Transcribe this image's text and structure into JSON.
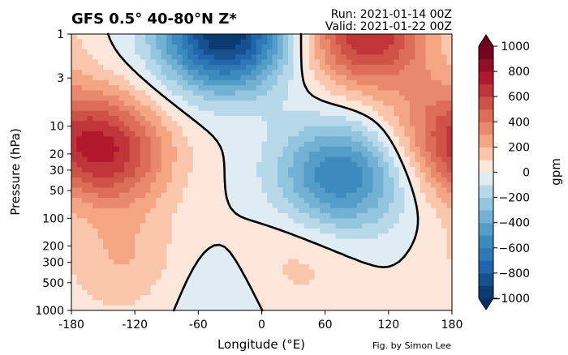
{
  "title": "GFS 0.5° 40-80°N Z*",
  "run_label": "Run: 2021-01-14 00Z",
  "valid_label": "Valid: 2021-01-22 00Z",
  "credit": "Fig. by Simon Lee",
  "colors": {
    "strong_positive": "#67001f",
    "positive": "#d6604d",
    "neutral": "#f7f7f7",
    "negative": "#4393c3",
    "strong_negative": "#053061",
    "zero_contour": "#000000"
  },
  "chart_data": {
    "type": "heatmap",
    "xlabel": "Longitude (°E)",
    "ylabel": "Pressure (hPa)",
    "xlim": [
      -180,
      180
    ],
    "ylim": [
      1000,
      1
    ],
    "y_scale": "log",
    "x_ticks": [
      "-180",
      "-120",
      "-60",
      "0",
      "60",
      "120",
      "180"
    ],
    "x_tick_values": [
      -180,
      -120,
      -60,
      0,
      60,
      120,
      180
    ],
    "y_ticks": [
      "1",
      "3",
      "10",
      "20",
      "30",
      "50",
      "100",
      "200",
      "300",
      "500",
      "1000"
    ],
    "y_tick_values": [
      1,
      3,
      10,
      20,
      30,
      50,
      100,
      200,
      300,
      500,
      1000
    ],
    "colorbar": {
      "label": "gpm",
      "ticks": [
        "1000",
        "800",
        "600",
        "400",
        "200",
        "0",
        "−200",
        "−400",
        "−600",
        "−800",
        "−1000"
      ],
      "range": [
        -1000,
        1000
      ],
      "levels": [
        -1000,
        -900,
        -800,
        -700,
        -600,
        -500,
        -400,
        -300,
        -200,
        -100,
        0,
        100,
        200,
        300,
        400,
        500,
        600,
        700,
        800,
        900,
        1000
      ],
      "extend": "both",
      "colormap": "RdBu_r"
    },
    "features": [
      {
        "lon": -145,
        "p": 20,
        "value": 600
      },
      {
        "lon": -35,
        "p": 1,
        "value": -1000
      },
      {
        "lon": 100,
        "p": 1,
        "value": 700
      },
      {
        "lon": 75,
        "p": 35,
        "value": -600
      },
      {
        "lon": 170,
        "p": 10,
        "value": 300
      },
      {
        "lon": -130,
        "p": 300,
        "value": 200
      },
      {
        "lon": 30,
        "p": 300,
        "value": 150
      },
      {
        "lon": -40,
        "p": 600,
        "value": -100
      }
    ]
  }
}
